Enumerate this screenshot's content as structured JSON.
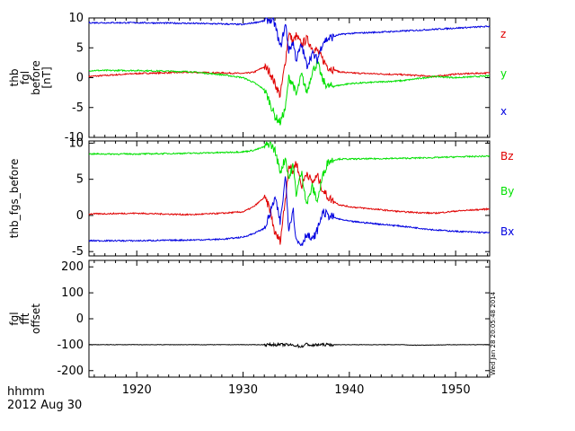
{
  "footer": {
    "time_label": "hhmm",
    "date_label": "2012 Aug 30"
  },
  "stamp": "Wed Jan 28 20:05:48 2014",
  "chart_data": [
    {
      "type": "line",
      "ylabel": [
        "thb",
        "fgl",
        "before",
        "[nT]"
      ],
      "ylim": [
        -10,
        10
      ],
      "yticks": [
        10,
        5,
        0,
        -5,
        -10
      ],
      "xlim": [
        1915.5,
        1953.2
      ],
      "xticks": [
        1920,
        1930,
        1940,
        1950
      ],
      "series": [
        {
          "name": "z",
          "color": "#e00000",
          "x": [
            1915.5,
            1920,
            1925,
            1928,
            1930,
            1931,
            1932,
            1932.5,
            1933,
            1933.5,
            1934,
            1934.3,
            1934.7,
            1935,
            1935.5,
            1936,
            1936.5,
            1937,
            1937.5,
            1938,
            1939,
            1940,
            1945,
            1948,
            1950,
            1953.2
          ],
          "y": [
            0.2,
            0.7,
            0.9,
            0.8,
            0.7,
            0.9,
            1.8,
            1.0,
            -1.0,
            -3.0,
            3.0,
            7.5,
            6.0,
            7.0,
            5.5,
            6.5,
            5.0,
            4.5,
            3.0,
            1.8,
            1.0,
            0.8,
            0.5,
            0.2,
            0.6,
            0.8
          ]
        },
        {
          "name": "y",
          "color": "#00e000",
          "x": [
            1915.5,
            1920,
            1925,
            1928,
            1930,
            1931,
            1932,
            1932.5,
            1933,
            1933.5,
            1934,
            1934.3,
            1934.7,
            1935,
            1935.5,
            1936,
            1936.5,
            1937,
            1937.5,
            1938,
            1939,
            1940,
            1945,
            1948,
            1950,
            1953.2
          ],
          "y": [
            1.2,
            1.2,
            1.0,
            0.5,
            0.0,
            -0.8,
            -2.0,
            -4.0,
            -6.5,
            -7.5,
            -5.0,
            0.0,
            -1.0,
            -3.0,
            0.5,
            -2.5,
            1.0,
            2.5,
            -0.5,
            -1.5,
            -1.3,
            -1.0,
            -0.5,
            0.2,
            0.0,
            0.3
          ]
        },
        {
          "name": "x",
          "color": "#0000e0",
          "x": [
            1915.5,
            1920,
            1925,
            1928,
            1930,
            1931,
            1932,
            1932.5,
            1933,
            1933.5,
            1934,
            1934.3,
            1934.7,
            1935,
            1935.5,
            1936,
            1936.5,
            1937,
            1937.5,
            1938,
            1939,
            1940,
            1945,
            1948,
            1950,
            1953.2
          ],
          "y": [
            9.2,
            9.2,
            9.1,
            9.0,
            8.9,
            9.2,
            9.5,
            9.8,
            9.0,
            5.0,
            9.0,
            4.5,
            6.0,
            3.0,
            5.5,
            2.0,
            4.0,
            3.0,
            6.0,
            6.5,
            7.2,
            7.4,
            7.8,
            8.1,
            8.3,
            8.6
          ]
        }
      ]
    },
    {
      "type": "line",
      "ylabel": [
        "thb_fgs_before"
      ],
      "ylim": [
        -5.6,
        10.3
      ],
      "yticks": [
        10,
        5,
        0,
        -5
      ],
      "xlim": [
        1915.5,
        1953.2
      ],
      "xticks": [
        1920,
        1930,
        1940,
        1950
      ],
      "series": [
        {
          "name": "Bz",
          "color": "#e00000",
          "x": [
            1915.5,
            1920,
            1925,
            1928,
            1930,
            1931,
            1932,
            1932.5,
            1933,
            1933.5,
            1934,
            1934.3,
            1934.7,
            1935,
            1935.5,
            1936,
            1936.5,
            1937,
            1937.5,
            1938,
            1939,
            1940,
            1945,
            1948,
            1950,
            1953.2
          ],
          "y": [
            0.2,
            0.3,
            0.1,
            0.3,
            0.5,
            1.2,
            2.5,
            1.0,
            -2.5,
            -3.5,
            2.5,
            7.0,
            6.0,
            7.5,
            4.0,
            6.0,
            4.5,
            5.5,
            3.5,
            2.5,
            1.5,
            1.2,
            0.5,
            0.3,
            0.6,
            0.9
          ]
        },
        {
          "name": "By",
          "color": "#00e000",
          "x": [
            1915.5,
            1920,
            1925,
            1928,
            1930,
            1931,
            1932,
            1932.5,
            1933,
            1933.5,
            1934,
            1934.3,
            1934.7,
            1935,
            1935.5,
            1936,
            1936.5,
            1937,
            1937.5,
            1938,
            1939,
            1940,
            1945,
            1948,
            1950,
            1953.2
          ],
          "y": [
            8.5,
            8.5,
            8.6,
            8.7,
            8.8,
            9.0,
            9.5,
            10.0,
            9.0,
            6.0,
            8.0,
            5.0,
            7.0,
            3.0,
            6.0,
            1.5,
            4.0,
            2.0,
            5.5,
            7.5,
            7.8,
            7.8,
            7.9,
            8.0,
            8.1,
            8.2
          ]
        },
        {
          "name": "Bx",
          "color": "#0000e0",
          "x": [
            1915.5,
            1920,
            1925,
            1928,
            1930,
            1931,
            1932,
            1932.5,
            1933,
            1933.5,
            1934,
            1934.3,
            1934.7,
            1935,
            1935.5,
            1936,
            1936.5,
            1937,
            1937.5,
            1938,
            1939,
            1940,
            1945,
            1948,
            1950,
            1953.2
          ],
          "y": [
            -3.5,
            -3.5,
            -3.4,
            -3.3,
            -3.0,
            -2.5,
            -1.8,
            0.0,
            2.5,
            -1.0,
            5.5,
            -2.0,
            1.0,
            -3.5,
            -4.0,
            -2.5,
            -3.5,
            -2.0,
            0.5,
            0.0,
            -0.5,
            -0.8,
            -1.5,
            -2.0,
            -2.2,
            -2.4
          ]
        }
      ]
    },
    {
      "type": "line",
      "ylabel": [
        "fgl",
        "fft",
        "offset"
      ],
      "ylim": [
        -225,
        225
      ],
      "yticks": [
        200,
        100,
        0,
        -100,
        -200
      ],
      "xlim": [
        1915.5,
        1953.2
      ],
      "xticks": [
        1920,
        1930,
        1940,
        1950
      ],
      "series": [
        {
          "name": "",
          "color": "#000000",
          "x": [
            1915.5,
            1920,
            1925,
            1930,
            1934,
            1935,
            1935.5,
            1936,
            1936.5,
            1937,
            1938,
            1940,
            1945,
            1946,
            1950,
            1953.2
          ],
          "y": [
            -100,
            -100,
            -100,
            -100,
            -100,
            -103,
            -108,
            -97,
            -104,
            -100,
            -100,
            -100,
            -100,
            -102,
            -100,
            -100
          ]
        }
      ]
    }
  ],
  "legends": [
    [
      {
        "label": "z",
        "color": "#e00000"
      },
      {
        "label": "y",
        "color": "#00e000"
      },
      {
        "label": "x",
        "color": "#0000e0"
      }
    ],
    [
      {
        "label": "Bz",
        "color": "#e00000"
      },
      {
        "label": "By",
        "color": "#00e000"
      },
      {
        "label": "Bx",
        "color": "#0000e0"
      }
    ]
  ]
}
